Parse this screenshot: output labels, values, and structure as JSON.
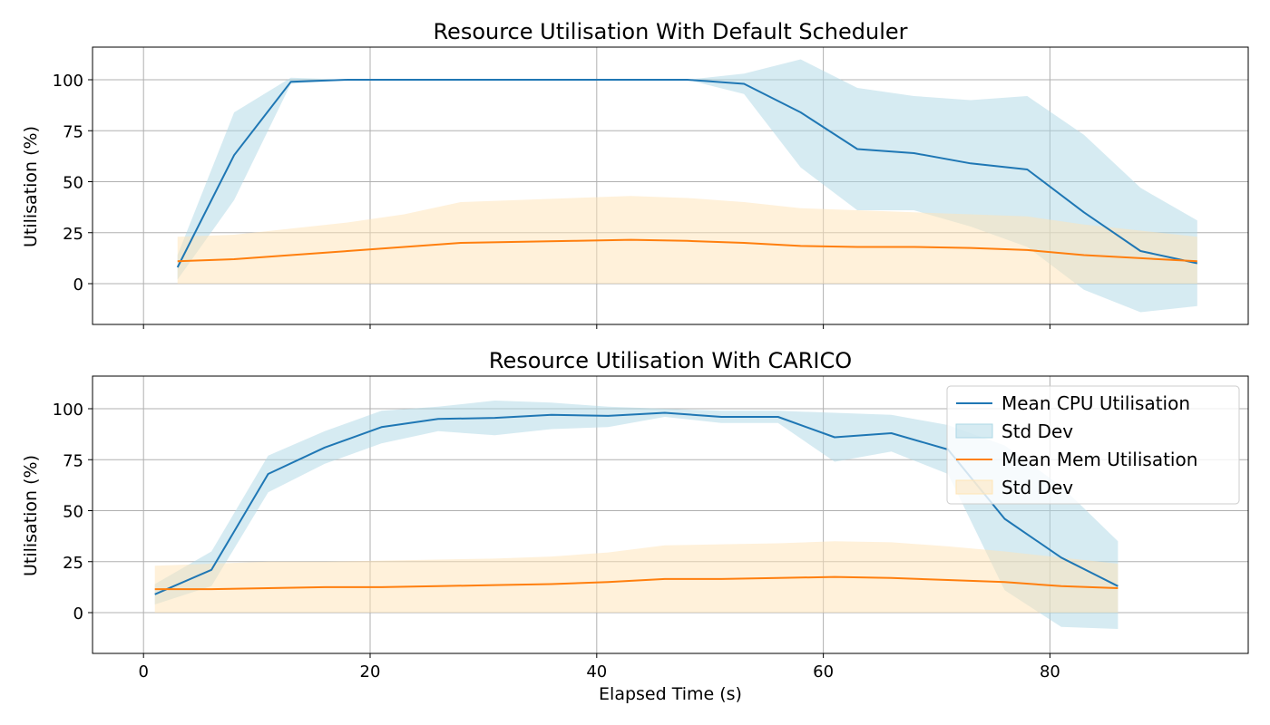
{
  "chart_data": [
    {
      "type": "line",
      "title": "Resource Utilisation With Default Scheduler",
      "xlabel": "",
      "ylabel": "Utilisation (%)",
      "xlim": [
        -4.5,
        97.5
      ],
      "ylim": [
        -20,
        116
      ],
      "xticks": [
        0,
        20,
        40,
        60,
        80
      ],
      "xtick_labels_visible": false,
      "yticks": [
        0,
        25,
        50,
        75,
        100
      ],
      "grid": true,
      "legend": "none",
      "series": [
        {
          "name": "Mean CPU Utilisation",
          "kind": "line",
          "color": "#1f77b4",
          "x": [
            3,
            8,
            13,
            18,
            23,
            28,
            33,
            38,
            43,
            48,
            53,
            58,
            63,
            68,
            73,
            78,
            83,
            88,
            93
          ],
          "y": [
            8,
            63,
            99,
            100,
            100,
            100,
            100,
            100,
            100,
            100,
            98,
            84,
            66,
            64,
            59,
            56,
            35,
            16,
            10
          ]
        },
        {
          "name": "Std Dev",
          "kind": "band",
          "color": "#add8e6",
          "x": [
            3,
            8,
            13,
            18,
            23,
            28,
            33,
            38,
            43,
            48,
            53,
            58,
            63,
            68,
            73,
            78,
            83,
            88,
            93
          ],
          "y_low": [
            2,
            41,
            98,
            100,
            100,
            100,
            100,
            100,
            100,
            100,
            93,
            57,
            36,
            36,
            28,
            18,
            -3,
            -14,
            -11
          ],
          "y_high": [
            14,
            84,
            101,
            100,
            100,
            100,
            100,
            100,
            100,
            100,
            103,
            110,
            96,
            92,
            90,
            92,
            73,
            47,
            31
          ]
        },
        {
          "name": "Mean Mem Utilisation",
          "kind": "line",
          "color": "#ff7f0e",
          "x": [
            3,
            8,
            13,
            18,
            23,
            28,
            33,
            38,
            43,
            48,
            53,
            58,
            63,
            68,
            73,
            78,
            83,
            88,
            93
          ],
          "y": [
            11,
            12,
            14,
            16,
            18,
            20,
            20.5,
            21,
            21.5,
            21,
            20,
            18.5,
            18,
            18,
            17.5,
            16.5,
            14,
            12.5,
            11
          ]
        },
        {
          "name": "Std Dev",
          "kind": "band",
          "color": "#ffe4b5",
          "x": [
            3,
            8,
            13,
            18,
            23,
            28,
            33,
            38,
            43,
            48,
            53,
            58,
            63,
            68,
            73,
            78,
            83,
            88,
            93
          ],
          "y_low": [
            0,
            0,
            0,
            0,
            0,
            0,
            0,
            0,
            0,
            0,
            0,
            0,
            0,
            0,
            0,
            0,
            0,
            0,
            0
          ],
          "y_high": [
            23,
            24,
            27,
            30,
            34,
            40,
            41,
            42,
            43,
            42,
            40,
            37,
            36,
            35,
            34,
            33,
            29,
            26,
            23
          ]
        }
      ]
    },
    {
      "type": "line",
      "title": "Resource Utilisation With CARICO",
      "xlabel": "Elapsed Time (s)",
      "ylabel": "Utilisation (%)",
      "xlim": [
        -4.5,
        97.5
      ],
      "ylim": [
        -20,
        116
      ],
      "xticks": [
        0,
        20,
        40,
        60,
        80
      ],
      "xtick_labels_visible": true,
      "yticks": [
        0,
        25,
        50,
        75,
        100
      ],
      "grid": true,
      "legend": "upper right",
      "series": [
        {
          "name": "Mean CPU Utilisation",
          "kind": "line",
          "color": "#1f77b4",
          "x": [
            1,
            6,
            11,
            16,
            21,
            26,
            31,
            36,
            41,
            46,
            51,
            56,
            61,
            66,
            71,
            76,
            81,
            86
          ],
          "y": [
            9,
            21,
            68,
            81,
            91,
            95,
            95.5,
            97,
            96.5,
            98,
            96,
            96,
            86,
            88,
            80,
            46,
            27,
            13
          ]
        },
        {
          "name": "Std Dev",
          "kind": "band",
          "color": "#add8e6",
          "x": [
            1,
            6,
            11,
            16,
            21,
            26,
            31,
            36,
            41,
            46,
            51,
            56,
            61,
            66,
            71,
            76,
            81,
            86
          ],
          "y_low": [
            4,
            13,
            59,
            73,
            83,
            89,
            87,
            90,
            91,
            96,
            93,
            93,
            74,
            79,
            68,
            11,
            -7,
            -8
          ],
          "y_high": [
            14,
            30,
            77,
            89,
            99,
            101,
            104,
            103,
            101,
            100,
            99,
            99,
            98,
            97,
            92,
            82,
            62,
            35
          ]
        },
        {
          "name": "Mean Mem Utilisation",
          "kind": "line",
          "color": "#ff7f0e",
          "x": [
            1,
            6,
            11,
            16,
            21,
            26,
            31,
            36,
            41,
            46,
            51,
            56,
            61,
            66,
            71,
            76,
            81,
            86
          ],
          "y": [
            11.5,
            11.5,
            12,
            12.5,
            12.5,
            13,
            13.5,
            14,
            15,
            16.5,
            16.5,
            17,
            17.5,
            17,
            16,
            15,
            13,
            12
          ]
        },
        {
          "name": "Std Dev",
          "kind": "band",
          "color": "#ffe4b5",
          "x": [
            1,
            6,
            11,
            16,
            21,
            26,
            31,
            36,
            41,
            46,
            51,
            56,
            61,
            66,
            71,
            76,
            81,
            86
          ],
          "y_low": [
            0,
            0,
            0,
            0,
            0,
            0,
            0,
            0,
            0,
            0,
            0,
            0,
            0,
            0,
            0,
            0,
            0,
            0
          ],
          "y_high": [
            23,
            24,
            25,
            25,
            25.5,
            26,
            26.5,
            27.5,
            29.5,
            33,
            33.5,
            34,
            35,
            34.5,
            32.5,
            30,
            27,
            24
          ]
        }
      ]
    }
  ]
}
